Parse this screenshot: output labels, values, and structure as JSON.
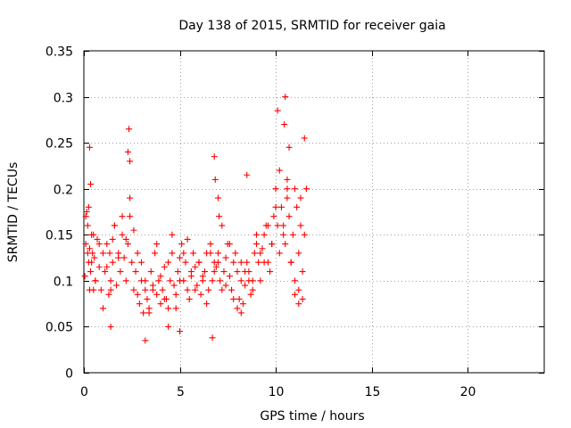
{
  "chart_data": {
    "type": "scatter",
    "title": "Day 138 of 2015, SRMTID for receiver gaia",
    "xlabel": "GPS time / hours",
    "ylabel": "SRMTID / TECUs",
    "xlim": [
      0,
      24
    ],
    "ylim": [
      0,
      0.35
    ],
    "xticks": [
      0,
      5,
      10,
      15,
      20
    ],
    "yticks": [
      0,
      0.05,
      0.1,
      0.15,
      0.2,
      0.25,
      0.3,
      0.35
    ],
    "xtick_labels": [
      "0",
      "5",
      "10",
      "15",
      "20"
    ],
    "ytick_labels": [
      "0",
      "0.05",
      "0.1",
      "0.15",
      "0.2",
      "0.25",
      "0.3",
      "0.35"
    ],
    "grid": true,
    "marker": "+",
    "series": [
      {
        "color": "#ff0000",
        "x": [
          0.05,
          0.1,
          0.15,
          0.2,
          0.25,
          0.3,
          0.35,
          0.4,
          0.45,
          0.5,
          0.55,
          0.6,
          0.7,
          0.8,
          0.9,
          1.0,
          1.1,
          1.2,
          1.3,
          1.4,
          1.5,
          1.6,
          1.7,
          1.8,
          1.9,
          2.0,
          2.1,
          2.2,
          2.3,
          2.4,
          2.5,
          2.6,
          2.7,
          2.8,
          2.9,
          3.0,
          3.1,
          3.2,
          3.3,
          3.4,
          3.5,
          3.6,
          3.7,
          3.8,
          3.9,
          4.0,
          4.1,
          4.2,
          4.3,
          4.4,
          4.5,
          4.6,
          4.7,
          4.8,
          4.9,
          5.0,
          5.1,
          5.2,
          5.3,
          5.4,
          5.5,
          5.6,
          5.7,
          5.8,
          5.9,
          6.0,
          6.1,
          6.2,
          6.3,
          6.4,
          6.5,
          6.6,
          6.7,
          6.8,
          6.9,
          7.0,
          7.1,
          7.2,
          7.3,
          7.4,
          7.5,
          7.6,
          7.7,
          7.8,
          7.9,
          8.0,
          8.1,
          8.2,
          8.3,
          8.4,
          8.5,
          8.6,
          8.7,
          8.8,
          8.9,
          9.0,
          9.1,
          9.2,
          9.3,
          9.4,
          9.5,
          9.6,
          9.7,
          9.8,
          9.9,
          10.0,
          10.1,
          10.2,
          10.3,
          10.4,
          10.5,
          10.6,
          10.7,
          10.8,
          10.9,
          11.0,
          11.1,
          11.2,
          11.3,
          11.4,
          11.5,
          11.6,
          0.1,
          0.2,
          0.3,
          0.4,
          0.5,
          0.6,
          0.8,
          1.0,
          1.2,
          1.4,
          1.6,
          1.8,
          2.0,
          2.2,
          2.4,
          2.6,
          2.8,
          3.0,
          3.2,
          3.4,
          3.6,
          3.8,
          4.0,
          4.2,
          4.4,
          4.6,
          4.8,
          5.0,
          5.2,
          5.4,
          5.6,
          5.8,
          6.0,
          6.2,
          6.4,
          6.6,
          6.8,
          7.0,
          7.2,
          7.4,
          7.6,
          7.8,
          8.0,
          8.2,
          8.4,
          8.6,
          8.8,
          9.0,
          9.2,
          9.4,
          9.6,
          9.8,
          10.0,
          10.2,
          10.4,
          10.6,
          10.8,
          11.0,
          11.2,
          11.4,
          0.3,
          0.35,
          1.5,
          2.35,
          2.4,
          6.8,
          6.85,
          7.0,
          7.05,
          8.5,
          10.1,
          10.5,
          10.7,
          11.3,
          11.5,
          2.3,
          1.35,
          0.25,
          10.45,
          10.6,
          1.4,
          3.2,
          4.4,
          5.0,
          6.7,
          8.2,
          11.0,
          11.2
        ],
        "y": [
          0.105,
          0.14,
          0.175,
          0.16,
          0.12,
          0.135,
          0.11,
          0.15,
          0.13,
          0.09,
          0.125,
          0.1,
          0.145,
          0.115,
          0.09,
          0.13,
          0.11,
          0.14,
          0.085,
          0.1,
          0.12,
          0.16,
          0.095,
          0.13,
          0.11,
          0.15,
          0.125,
          0.1,
          0.14,
          0.17,
          0.12,
          0.09,
          0.11,
          0.085,
          0.075,
          0.1,
          0.065,
          0.09,
          0.08,
          0.07,
          0.11,
          0.095,
          0.13,
          0.085,
          0.1,
          0.075,
          0.09,
          0.115,
          0.08,
          0.07,
          0.1,
          0.13,
          0.095,
          0.085,
          0.11,
          0.125,
          0.14,
          0.1,
          0.12,
          0.09,
          0.08,
          0.105,
          0.13,
          0.115,
          0.095,
          0.12,
          0.085,
          0.1,
          0.11,
          0.075,
          0.09,
          0.13,
          0.1,
          0.12,
          0.115,
          0.13,
          0.1,
          0.09,
          0.11,
          0.125,
          0.14,
          0.105,
          0.09,
          0.12,
          0.13,
          0.11,
          0.08,
          0.1,
          0.075,
          0.095,
          0.12,
          0.11,
          0.085,
          0.1,
          0.13,
          0.14,
          0.12,
          0.1,
          0.135,
          0.15,
          0.16,
          0.12,
          0.11,
          0.14,
          0.17,
          0.2,
          0.16,
          0.13,
          0.18,
          0.15,
          0.14,
          0.19,
          0.17,
          0.12,
          0.15,
          0.2,
          0.18,
          0.13,
          0.16,
          0.11,
          0.15,
          0.2,
          0.17,
          0.13,
          0.09,
          0.12,
          0.15,
          0.1,
          0.14,
          0.07,
          0.115,
          0.09,
          0.16,
          0.125,
          0.17,
          0.145,
          0.19,
          0.155,
          0.13,
          0.12,
          0.1,
          0.065,
          0.09,
          0.14,
          0.105,
          0.08,
          0.12,
          0.15,
          0.07,
          0.1,
          0.13,
          0.145,
          0.11,
          0.09,
          0.12,
          0.105,
          0.13,
          0.14,
          0.11,
          0.12,
          0.16,
          0.095,
          0.14,
          0.08,
          0.07,
          0.12,
          0.11,
          0.1,
          0.09,
          0.15,
          0.13,
          0.12,
          0.16,
          0.14,
          0.18,
          0.22,
          0.16,
          0.21,
          0.12,
          0.1,
          0.09,
          0.08,
          0.245,
          0.205,
          0.145,
          0.265,
          0.23,
          0.235,
          0.21,
          0.19,
          0.17,
          0.215,
          0.285,
          0.3,
          0.245,
          0.19,
          0.255,
          0.24,
          0.13,
          0.18,
          0.27,
          0.2,
          0.05,
          0.035,
          0.05,
          0.045,
          0.038,
          0.065,
          0.085,
          0.075
        ]
      }
    ]
  }
}
